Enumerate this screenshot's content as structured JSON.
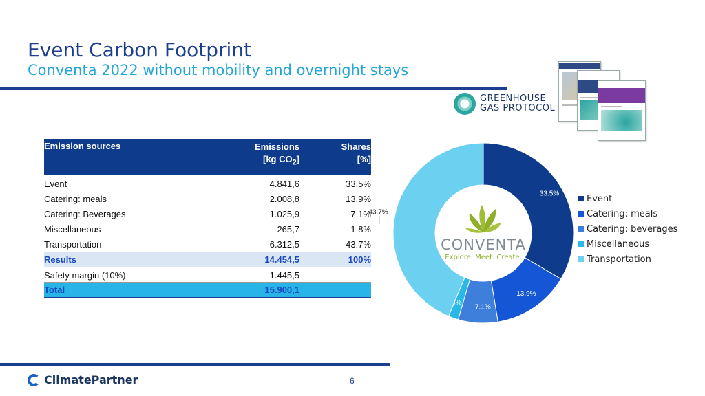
{
  "slide": {
    "title": "Event Carbon Footprint",
    "subtitle": "Conventa 2022 without mobility and overnight stays",
    "page_number": "6"
  },
  "logos": {
    "ghg_line1": "GREENHOUSE",
    "ghg_line2": "GAS PROTOCOL",
    "conventa_word": "CONVENTA",
    "conventa_tagline": "Explore. Meet. Create.",
    "climatepartner": "ClimatePartner"
  },
  "table": {
    "headers": {
      "source": "Emission sources",
      "emissions_line1": "Emissions",
      "emissions_line2": "[kg CO",
      "emissions_sub": "2",
      "emissions_close": "]",
      "shares_line1": "Shares",
      "shares_line2": "[%]"
    },
    "rows": [
      {
        "source": "Event",
        "emissions": "4.841,6",
        "share": "33,5%"
      },
      {
        "source": "Catering: meals",
        "emissions": "2.008,8",
        "share": "13,9%"
      },
      {
        "source": "Catering: Beverages",
        "emissions": "1.025,9",
        "share": "7,1%"
      },
      {
        "source": "Miscellaneous",
        "emissions": "265,7",
        "share": "1,8%"
      },
      {
        "source": "Transportation",
        "emissions": "6.312,5",
        "share": "43,7%"
      }
    ],
    "results": {
      "source": "Results",
      "emissions": "14.454,5",
      "share": "100%"
    },
    "margin": {
      "source": "Safety margin (10%)",
      "emissions": "1.445,5",
      "share": ""
    },
    "total": {
      "source": "Total",
      "emissions": "15.900,1",
      "share": ""
    }
  },
  "chart_data": {
    "type": "pie",
    "donut": true,
    "categories": [
      "Event",
      "Catering: meals",
      "Catering: beverages",
      "Miscellaneous",
      "Transportation"
    ],
    "values": [
      33.5,
      13.9,
      7.1,
      1.8,
      43.7
    ],
    "data_labels": [
      "33.5%",
      "13.9%",
      "7.1%",
      "1.8%",
      "43.7%"
    ],
    "colors": [
      "#0e3b8c",
      "#1556d6",
      "#3f7fdc",
      "#29b9e6",
      "#6cd0f0"
    ],
    "legend_position": "right"
  }
}
